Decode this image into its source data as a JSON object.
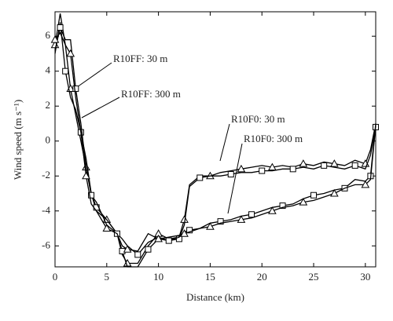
{
  "chart_data": {
    "type": "line",
    "x_label": "Distance (km)",
    "y_label": "Wind speed (m s⁻¹)",
    "xlim": [
      0,
      31
    ],
    "ylim": [
      -7.2,
      7.4
    ],
    "xticks": [
      0,
      5,
      10,
      15,
      20,
      25,
      30
    ],
    "yticks": [
      -6,
      -4,
      -2,
      0,
      2,
      4,
      6
    ],
    "x": [
      0,
      0.5,
      1,
      1.5,
      2,
      2.5,
      3,
      3.5,
      4,
      5,
      6,
      6.5,
      7,
      8,
      9,
      10,
      11,
      12,
      12.5,
      13,
      14,
      15,
      16,
      17,
      18,
      19,
      20,
      21,
      22,
      23,
      24,
      25,
      26,
      27,
      28,
      29,
      30,
      30.5,
      31
    ],
    "series": [
      {
        "name": "R10FF: 30 m",
        "color": "#000000",
        "marker": "triangle",
        "values": [
          5.5,
          7.3,
          5.5,
          3,
          1.5,
          0,
          -1.5,
          -3,
          -4,
          -4.5,
          -5.3,
          -6.5,
          -7,
          -7,
          -6,
          -5.3,
          -5.6,
          -5.5,
          -4.5,
          -2.5,
          -2,
          -2,
          -1.8,
          -1.7,
          -1.6,
          -1.5,
          -1.4,
          -1.5,
          -1.4,
          -1.5,
          -1.3,
          -1.4,
          -1.2,
          -1.3,
          -1.4,
          -1.1,
          -1.3,
          -0.5,
          1
        ]
      },
      {
        "name": "R10FF: 300 m",
        "color": "#000000",
        "marker": "square",
        "values": [
          5,
          6.8,
          4,
          2.5,
          1.8,
          0.5,
          -1,
          -3,
          -3.8,
          -4.5,
          -5.3,
          -6.3,
          -7.2,
          -7.2,
          -6.2,
          -5.6,
          -5.7,
          -5.6,
          -4.8,
          -2.6,
          -2.1,
          -2,
          -2,
          -1.9,
          -1.8,
          -1.8,
          -1.7,
          -1.7,
          -1.6,
          -1.6,
          -1.5,
          -1.6,
          -1.4,
          -1.5,
          -1.6,
          -1.4,
          -1.6,
          -0.8,
          0.8
        ]
      },
      {
        "name": "R10F0: 30 m",
        "color": "#000000",
        "marker": "square",
        "values": [
          5.2,
          6.5,
          5.8,
          5.8,
          3,
          1,
          -1.5,
          -3.1,
          -3.5,
          -4.8,
          -5.3,
          -5.6,
          -6,
          -6.5,
          -5.8,
          -5.5,
          -5.7,
          -5.5,
          -5.2,
          -5.1,
          -5,
          -4.7,
          -4.6,
          -4.5,
          -4.3,
          -4.2,
          -4,
          -3.8,
          -3.7,
          -3.6,
          -3.3,
          -3.1,
          -3,
          -2.8,
          -2.7,
          -2.2,
          -2.3,
          -2,
          1
        ]
      },
      {
        "name": "R10F0: 300 m",
        "color": "#000000",
        "marker": "triangle",
        "values": [
          5.8,
          6.2,
          5.5,
          5,
          2.5,
          0.5,
          -2,
          -3.6,
          -4,
          -5,
          -5.3,
          -6,
          -6.2,
          -6.3,
          -5.3,
          -5.6,
          -5.5,
          -5.4,
          -5.3,
          -5.2,
          -5,
          -4.9,
          -4.7,
          -4.6,
          -4.5,
          -4.4,
          -4.2,
          -4,
          -3.8,
          -3.7,
          -3.5,
          -3.4,
          -3.2,
          -3,
          -2.7,
          -2.5,
          -2.5,
          -2.2,
          0.9
        ]
      }
    ]
  }
}
